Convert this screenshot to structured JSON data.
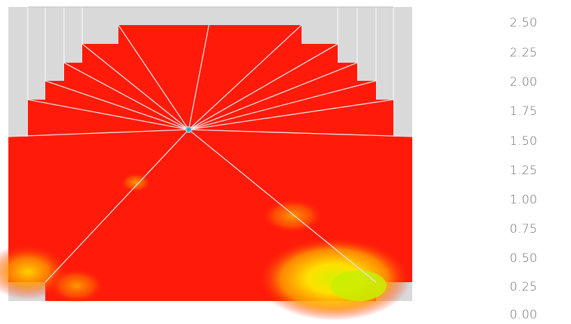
{
  "colorbar": {
    "ticks": [
      "2.50",
      "2.25",
      "2.00",
      "1.75",
      "1.50",
      "1.25",
      "1.00",
      "0.75",
      "0.50",
      "0.25",
      "0.00"
    ]
  },
  "colors": {
    "background": "#ffffff",
    "solid_region": "#d9d9d9",
    "field_high": "#ff1a0a",
    "field_mid": "#ff8a00",
    "field_low": "#ffe800",
    "field_lowest": "#9be600",
    "grid_lines": "#e0e0e0",
    "hub": "#3aa6c8"
  }
}
